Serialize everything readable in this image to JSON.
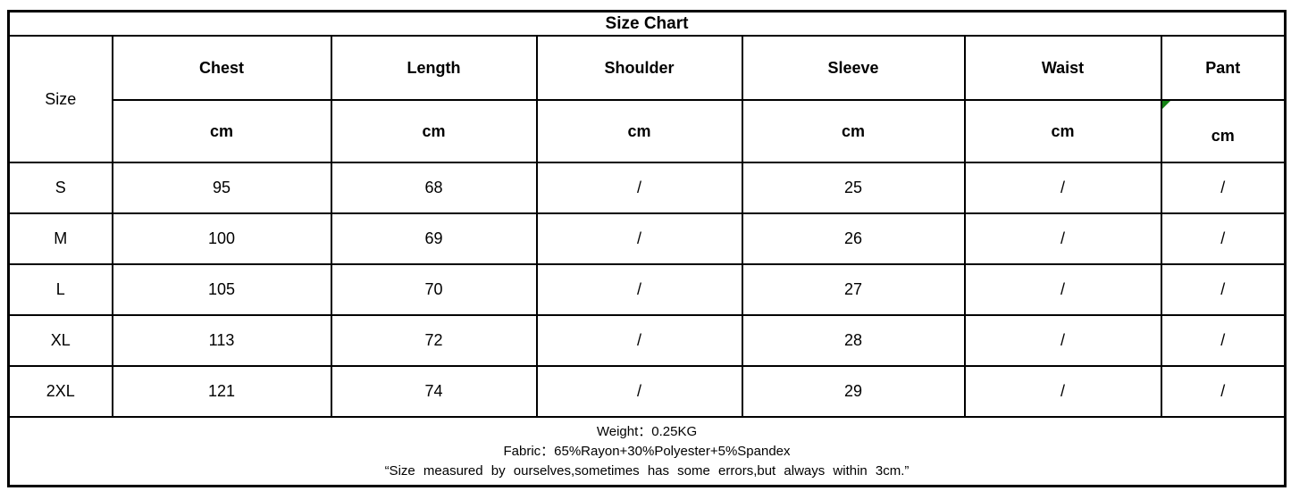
{
  "size_chart": {
    "title": "Size Chart",
    "size_column_header": "Size",
    "columns": [
      "Chest",
      "Length",
      "Shoulder",
      "Sleeve",
      "Waist",
      "Pant"
    ],
    "units": [
      "cm",
      "cm",
      "cm",
      "cm",
      "cm",
      "cm"
    ],
    "rows": [
      {
        "size": "S",
        "values": [
          "95",
          "68",
          "/",
          "25",
          "/",
          "/"
        ]
      },
      {
        "size": "M",
        "values": [
          "100",
          "69",
          "/",
          "26",
          "/",
          "/"
        ]
      },
      {
        "size": "L",
        "values": [
          "105",
          "70",
          "/",
          "27",
          "/",
          "/"
        ]
      },
      {
        "size": "XL",
        "values": [
          "113",
          "72",
          "/",
          "28",
          "/",
          "/"
        ]
      },
      {
        "size": "2XL",
        "values": [
          "121",
          "74",
          "/",
          "29",
          "/",
          "/"
        ]
      }
    ],
    "footer": {
      "weight": "Weight：0.25KG",
      "fabric": "Fabric：65%Rayon+30%Polyester+5%Spandex",
      "note": "“Size measured by ourselves,sometimes has some errors,but always within 3cm.”"
    },
    "marker": {
      "description": "green corner triangle in Pant cm cell",
      "color": "#148214"
    },
    "colors": {
      "border": "#000000",
      "text": "#000000",
      "background": "#ffffff"
    }
  }
}
